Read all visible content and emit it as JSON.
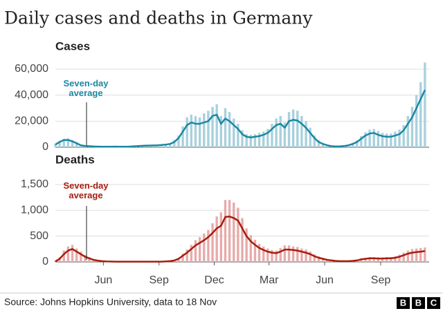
{
  "title": "Daily cases and deaths in Germany",
  "source": "Source: Johns Hopkins University, data to 18 Nov",
  "logo": [
    "B",
    "B",
    "C"
  ],
  "chart_data": [
    {
      "type": "bar",
      "title": "Cases",
      "x": [
        0,
        1,
        2,
        3,
        4,
        5,
        6,
        7,
        8,
        9,
        10,
        11,
        12,
        13,
        14,
        15,
        16,
        17,
        18,
        19,
        20,
        21,
        22,
        23,
        24,
        25,
        26,
        27,
        28,
        29,
        30,
        31,
        32,
        33,
        34,
        35,
        36,
        37,
        38,
        39,
        40,
        41,
        42,
        43,
        44,
        45,
        46,
        47,
        48,
        49,
        50,
        51,
        52,
        53,
        54,
        55,
        56,
        57,
        58,
        59,
        60,
        61,
        62,
        63,
        64,
        65,
        66,
        67,
        68,
        69,
        70,
        71,
        72,
        73,
        74,
        75,
        76,
        77,
        78,
        79,
        80,
        81,
        82,
        83,
        84,
        85,
        86,
        87
      ],
      "series": [
        {
          "type": "bar",
          "color": "#a9d0dd",
          "values": [
            2500,
            5000,
            6500,
            6800,
            5500,
            4000,
            2000,
            1300,
            1000,
            800,
            700,
            500,
            500,
            600,
            700,
            500,
            500,
            600,
            800,
            1100,
            1400,
            1600,
            1700,
            1800,
            2000,
            2200,
            2600,
            3200,
            5500,
            9000,
            16000,
            23000,
            25000,
            24000,
            23000,
            26000,
            28000,
            31000,
            33000,
            24000,
            30000,
            27000,
            22000,
            18000,
            13000,
            10000,
            9500,
            10000,
            11000,
            12000,
            14000,
            18000,
            22000,
            24000,
            19000,
            27000,
            29000,
            28000,
            24000,
            20000,
            15000,
            9000,
            5500,
            3200,
            2000,
            1100,
            800,
            900,
            1200,
            2000,
            3300,
            5200,
            8500,
            11500,
            13500,
            14000,
            12500,
            11000,
            10500,
            10500,
            12000,
            13500,
            17000,
            24000,
            31000,
            40000,
            50000,
            65000
          ]
        },
        {
          "type": "line",
          "name": "Seven-day average",
          "color": "#1a88a2",
          "values": [
            2000,
            4000,
            5500,
            5500,
            4500,
            3000,
            1500,
            1000,
            800,
            600,
            500,
            400,
            400,
            450,
            500,
            400,
            400,
            450,
            600,
            800,
            1000,
            1200,
            1300,
            1400,
            1500,
            1700,
            2000,
            2500,
            4000,
            7000,
            12000,
            17000,
            19000,
            18000,
            18000,
            19000,
            20000,
            24000,
            25000,
            18000,
            22000,
            20000,
            17000,
            14000,
            10000,
            8000,
            7500,
            8000,
            8500,
            9500,
            11000,
            14000,
            17000,
            18000,
            15000,
            20000,
            21000,
            20500,
            18000,
            15000,
            11000,
            7000,
            4000,
            2500,
            1500,
            800,
            600,
            700,
            900,
            1500,
            2500,
            4000,
            6500,
            9000,
            10500,
            11000,
            9500,
            8500,
            8000,
            8000,
            9000,
            10000,
            13000,
            18000,
            23000,
            30000,
            37000,
            44000
          ]
        }
      ],
      "xlim": [
        0,
        88
      ],
      "ylim": [
        0,
        66000
      ],
      "yticks": [
        0,
        {
          "value": 20000,
          "label": "20,000"
        },
        {
          "value": 40000,
          "label": "40,000"
        },
        {
          "value": 60000,
          "label": "60,000"
        }
      ],
      "grid": true
    },
    {
      "type": "bar",
      "title": "Deaths",
      "x": [
        0,
        1,
        2,
        3,
        4,
        5,
        6,
        7,
        8,
        9,
        10,
        11,
        12,
        13,
        14,
        15,
        16,
        17,
        18,
        19,
        20,
        21,
        22,
        23,
        24,
        25,
        26,
        27,
        28,
        29,
        30,
        31,
        32,
        33,
        34,
        35,
        36,
        37,
        38,
        39,
        40,
        41,
        42,
        43,
        44,
        45,
        46,
        47,
        48,
        49,
        50,
        51,
        52,
        53,
        54,
        55,
        56,
        57,
        58,
        59,
        60,
        61,
        62,
        63,
        64,
        65,
        66,
        67,
        68,
        69,
        70,
        71,
        72,
        73,
        74,
        75,
        76,
        77,
        78,
        79,
        80,
        81,
        82,
        83,
        84,
        85,
        86,
        87
      ],
      "series": [
        {
          "type": "bar",
          "color": "#e8abaa",
          "values": [
            20,
            90,
            220,
            300,
            330,
            260,
            200,
            130,
            90,
            55,
            35,
            20,
            15,
            12,
            8,
            8,
            7,
            6,
            6,
            6,
            6,
            6,
            7,
            8,
            9,
            10,
            15,
            22,
            40,
            80,
            160,
            240,
            330,
            420,
            480,
            550,
            620,
            750,
            880,
            960,
            1200,
            1200,
            1150,
            1050,
            850,
            650,
            520,
            430,
            350,
            300,
            260,
            230,
            220,
            270,
            320,
            320,
            300,
            290,
            260,
            240,
            200,
            150,
            110,
            80,
            55,
            40,
            28,
            20,
            20,
            20,
            28,
            40,
            70,
            80,
            95,
            95,
            90,
            88,
            92,
            95,
            110,
            140,
            180,
            220,
            250,
            260,
            270,
            280
          ]
        },
        {
          "type": "line",
          "name": "Seven-day average",
          "color": "#a61d0d",
          "values": [
            10,
            60,
            150,
            220,
            250,
            200,
            150,
            100,
            70,
            40,
            25,
            15,
            10,
            8,
            5,
            5,
            5,
            5,
            5,
            5,
            5,
            5,
            5,
            5,
            5,
            5,
            10,
            15,
            30,
            60,
            120,
            180,
            250,
            320,
            370,
            420,
            480,
            560,
            650,
            700,
            870,
            880,
            850,
            800,
            650,
            500,
            400,
            330,
            270,
            230,
            200,
            180,
            170,
            200,
            240,
            240,
            230,
            220,
            200,
            180,
            150,
            110,
            80,
            60,
            40,
            30,
            20,
            15,
            15,
            15,
            20,
            30,
            50,
            60,
            70,
            70,
            65,
            65,
            70,
            70,
            80,
            100,
            130,
            160,
            180,
            190,
            200,
            210
          ]
        }
      ],
      "xlim": [
        0,
        88
      ],
      "ylim": [
        0,
        1700
      ],
      "yticks": [
        0,
        500,
        {
          "value": 1000,
          "label": "1,000"
        },
        {
          "value": 1500,
          "label": "1,500"
        }
      ],
      "xticks": [
        {
          "value": 11.3,
          "label": "Jun"
        },
        {
          "value": 24.4,
          "label": "Sep"
        },
        {
          "value": 37.4,
          "label": "Dec"
        },
        {
          "value": 50.3,
          "label": "Mar"
        },
        {
          "value": 63.4,
          "label": "Jun"
        },
        {
          "value": 76.6,
          "label": "Sep"
        }
      ],
      "grid": true
    }
  ]
}
